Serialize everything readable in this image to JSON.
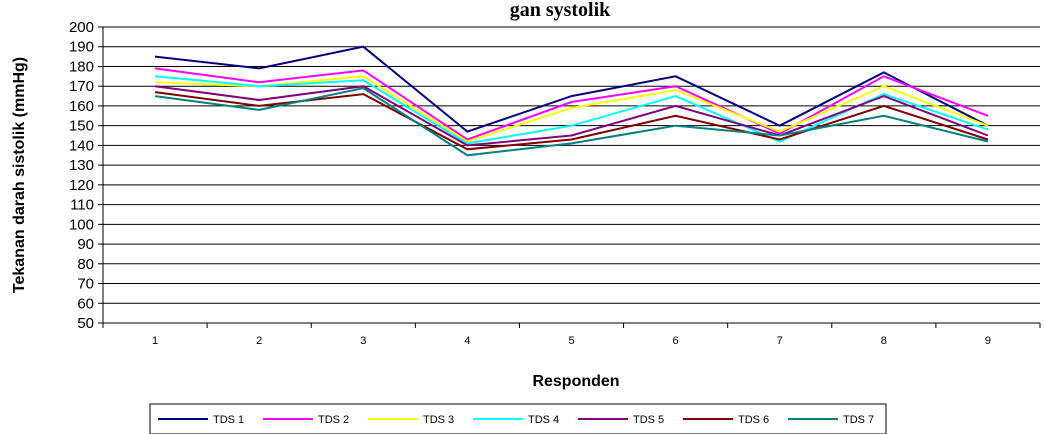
{
  "chart_data": {
    "type": "line",
    "title": "gan systolik",
    "xlabel": "Responden",
    "ylabel": "Tekanan darah sistolik (mmHg)",
    "x": [
      "1",
      "2",
      "3",
      "4",
      "5",
      "6",
      "7",
      "8",
      "9"
    ],
    "ylim": [
      50,
      200
    ],
    "yticks": [
      50,
      60,
      70,
      80,
      90,
      100,
      110,
      120,
      130,
      140,
      150,
      160,
      170,
      180,
      190,
      200
    ],
    "grid": true,
    "legend": "bottom",
    "series": [
      {
        "name": "TDS 1",
        "color": "#000080",
        "values": [
          185,
          179,
          190,
          147,
          165,
          175,
          150,
          177,
          150
        ]
      },
      {
        "name": "TDS 2",
        "color": "#ff00ff",
        "values": [
          179,
          172,
          178,
          143,
          162,
          170,
          146,
          175,
          155
        ]
      },
      {
        "name": "TDS 3",
        "color": "#ffff00",
        "values": [
          172,
          170,
          175,
          142,
          159,
          168,
          147,
          170,
          150
        ]
      },
      {
        "name": "TDS 4",
        "color": "#00ffff",
        "values": [
          175,
          170,
          173,
          141,
          150,
          165,
          142,
          166,
          148
        ]
      },
      {
        "name": "TDS 5",
        "color": "#800080",
        "values": [
          170,
          163,
          170,
          140,
          145,
          160,
          145,
          165,
          145
        ]
      },
      {
        "name": "TDS 6",
        "color": "#800000",
        "values": [
          167,
          160,
          166,
          138,
          143,
          155,
          143,
          160,
          143
        ]
      },
      {
        "name": "TDS 7",
        "color": "#008080",
        "values": [
          165,
          158,
          169,
          135,
          141,
          150,
          145,
          155,
          142
        ]
      }
    ]
  }
}
